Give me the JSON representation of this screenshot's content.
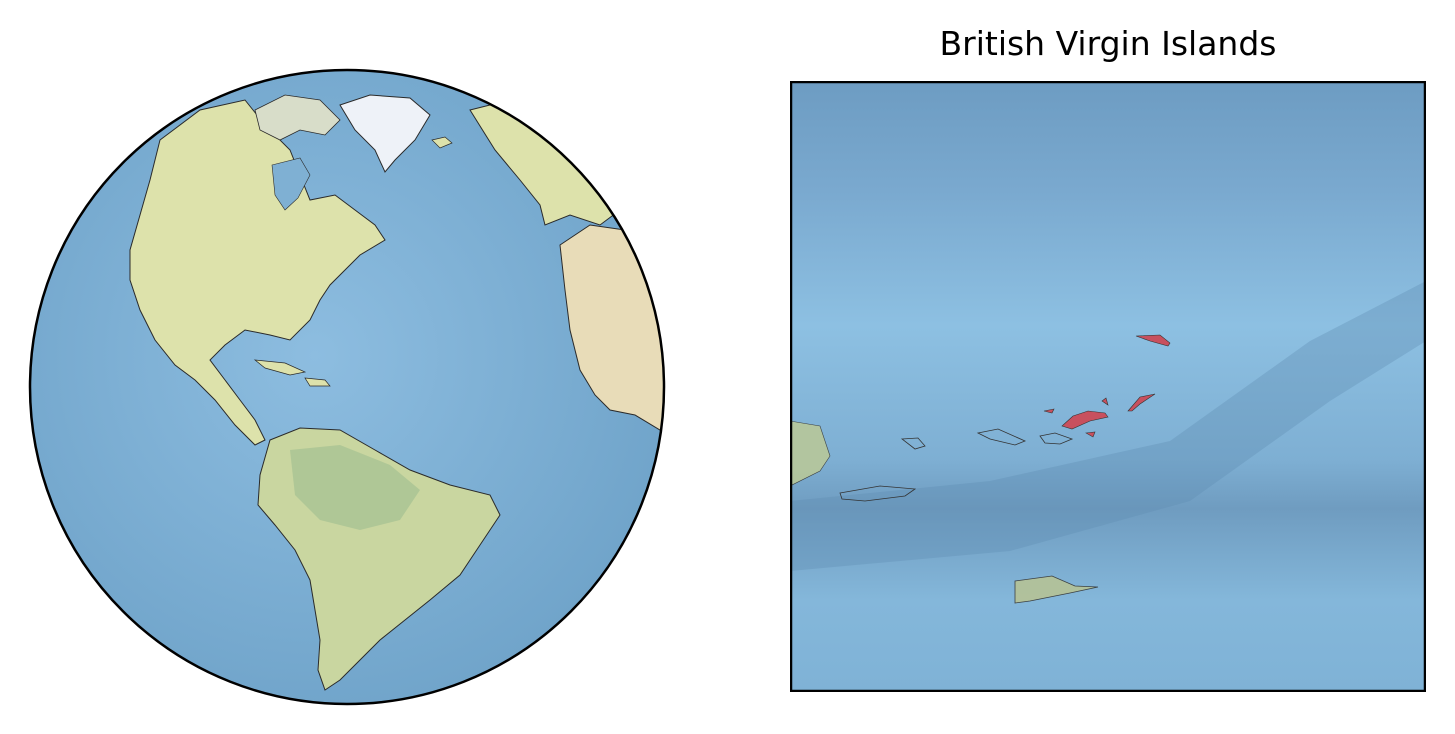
{
  "globe": {
    "name": "orthographic-globe",
    "ocean_color": "#7fb0d3",
    "land_color": "#d9dfa7",
    "ice_color": "#eef2f8",
    "outline_color": "#000000"
  },
  "inset": {
    "title": "British Virgin Islands",
    "ocean_color": "#83b6da",
    "highlight_color": "#c8505e",
    "frame_color": "#000000"
  }
}
